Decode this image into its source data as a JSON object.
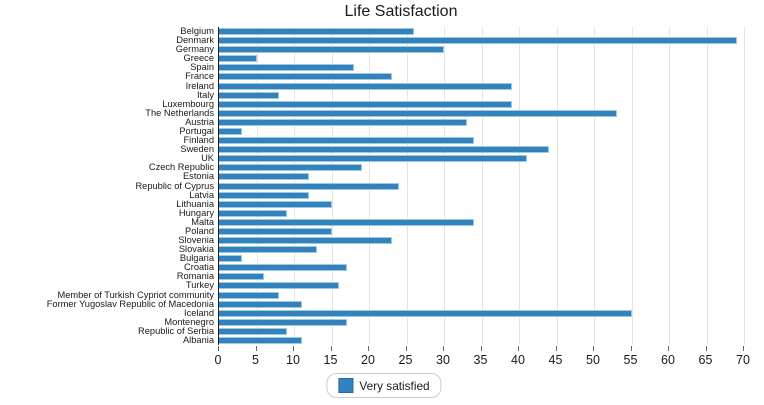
{
  "title": "Life Satisfaction",
  "legend": {
    "label": "Very satisfied",
    "swatch_color": "#3182bd"
  },
  "colors": {
    "bar": "#3182bd",
    "bar_edge": "#9ecae1",
    "gridline": "#e4e4e4",
    "axis_line": "#1f1f1f",
    "tick": "#666666",
    "text": "#1a1a1a",
    "background": "#ffffff"
  },
  "chart_data": {
    "type": "bar",
    "orientation": "horizontal",
    "title": "Life Satisfaction",
    "series_name": "Very satisfied",
    "categories": [
      "Belgium",
      "Denmark",
      "Germany",
      "Greece",
      "Spain",
      "France",
      "Ireland",
      "Italy",
      "Luxembourg",
      "The Netherlands",
      "Austria",
      "Portugal",
      "Finland",
      "Sweden",
      "UK",
      "Czech Republic",
      "Estonia",
      "Republic of Cyprus",
      "Latvia",
      "Lithuania",
      "Hungary",
      "Malta",
      "Poland",
      "Slovenia",
      "Slovakia",
      "Bulgaria",
      "Croatia",
      "Romania",
      "Turkey",
      "Member of Turkish Cypriot community",
      "Former Yugoslav Republic of Macedonia",
      "Iceland",
      "Montenegro",
      "Republic of Serbia",
      "Albania"
    ],
    "values": [
      26,
      69,
      30,
      5,
      18,
      23,
      39,
      8,
      39,
      53,
      33,
      3,
      34,
      44,
      41,
      19,
      12,
      24,
      12,
      15,
      9,
      34,
      15,
      23,
      13,
      3,
      17,
      6,
      16,
      8,
      11,
      55,
      17,
      9,
      11
    ],
    "xlabel": "",
    "ylabel": "",
    "xlim": [
      0,
      70.7
    ],
    "x_ticks": [
      0,
      5,
      10,
      15,
      20,
      25,
      30,
      35,
      40,
      45,
      50,
      55,
      60,
      65,
      70
    ],
    "grid": "vertical",
    "legend_position": "bottom-center"
  }
}
